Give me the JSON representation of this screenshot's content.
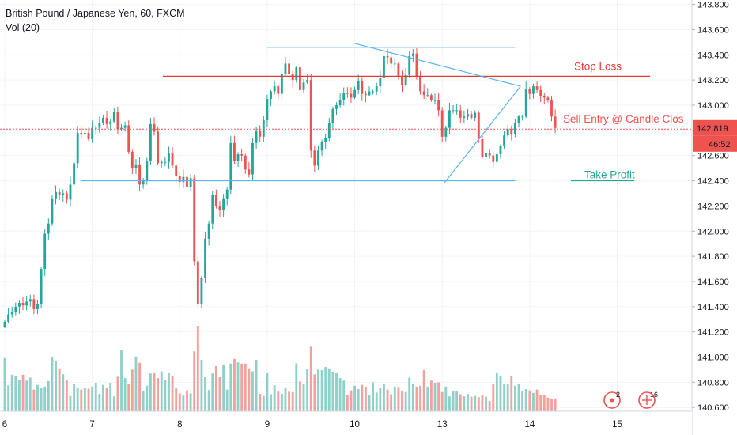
{
  "chart_data": {
    "type": "candlestick",
    "title": "British Pound / Japanese Yen, 60, FXCM",
    "subtitle": "Vol (20)",
    "y_ticks": [
      "143.800",
      "143.600",
      "143.400",
      "143.200",
      "143.000",
      "142.800",
      "142.600",
      "142.400",
      "142.200",
      "142.000",
      "141.800",
      "141.600",
      "141.400",
      "141.200",
      "141.000",
      "140.800",
      "140.600"
    ],
    "ylim": [
      140.57,
      143.835
    ],
    "x_ticks": [
      {
        "label": "6",
        "x": 0
      },
      {
        "label": "7",
        "x": 24
      },
      {
        "label": "8",
        "x": 48
      },
      {
        "label": "9",
        "x": 72
      },
      {
        "label": "10",
        "x": 96
      },
      {
        "label": "13",
        "x": 120
      },
      {
        "label": "14",
        "x": 144
      },
      {
        "label": "15",
        "x": 168
      }
    ],
    "xlim": [
      -1.3,
      188.5
    ],
    "last_price": "142.819",
    "countdown": "46:52",
    "close_values": [
      141.28,
      141.34,
      141.36,
      141.4,
      141.43,
      141.41,
      141.44,
      141.46,
      141.38,
      141.42,
      141.7,
      141.98,
      142.06,
      142.26,
      142.31,
      142.29,
      142.3,
      142.25,
      142.37,
      142.54,
      142.78,
      142.77,
      142.78,
      142.73,
      142.82,
      142.82,
      142.86,
      142.9,
      142.85,
      142.87,
      142.95,
      142.81,
      142.82,
      142.84,
      142.63,
      142.5,
      142.53,
      142.37,
      142.4,
      142.56,
      142.85,
      142.79,
      142.54,
      142.55,
      142.55,
      142.62,
      142.52,
      142.44,
      142.39,
      142.43,
      142.35,
      142.42,
      141.76,
      141.42,
      141.63,
      141.94,
      142.06,
      142.29,
      142.2,
      142.17,
      142.26,
      142.33,
      142.7,
      142.56,
      142.61,
      142.6,
      142.49,
      142.45,
      142.7,
      142.8,
      142.75,
      142.88,
      143.05,
      143.11,
      143.15,
      143.09,
      143.25,
      143.33,
      143.25,
      143.2,
      143.3,
      143.12,
      143.18,
      143.2,
      142.64,
      142.52,
      142.64,
      142.71,
      142.74,
      142.86,
      142.97,
      143.0,
      143.04,
      143.1,
      143.09,
      143.06,
      143.12,
      143.19,
      143.09,
      143.08,
      143.11,
      143.11,
      143.15,
      143.22,
      143.39,
      143.38,
      143.33,
      143.33,
      143.23,
      143.16,
      143.24,
      143.39,
      143.41,
      143.23,
      143.11,
      143.08,
      143.08,
      143.04,
      143.04,
      142.96,
      142.75,
      142.82,
      142.96,
      142.96,
      142.96,
      142.9,
      142.91,
      142.93,
      142.9,
      142.94,
      142.73,
      142.59,
      142.62,
      142.6,
      142.55,
      142.61,
      142.68,
      142.76,
      142.81,
      142.77,
      142.86,
      142.91,
      142.91,
      143.13,
      143.09,
      143.15,
      143.12,
      143.07,
      143.06,
      143.04,
      142.91,
      142.82
    ],
    "volumes": [
      125,
      61,
      86,
      83,
      73,
      86,
      72,
      79,
      51,
      62,
      55,
      58,
      71,
      128,
      118,
      101,
      87,
      73,
      36,
      64,
      56,
      51,
      55,
      53,
      58,
      67,
      41,
      62,
      55,
      67,
      35,
      81,
      144,
      78,
      64,
      98,
      129,
      114,
      48,
      60,
      89,
      91,
      78,
      94,
      73,
      91,
      83,
      56,
      42,
      37,
      49,
      42,
      141,
      201,
      121,
      80,
      50,
      89,
      106,
      80,
      110,
      51,
      112,
      123,
      115,
      112,
      112,
      101,
      94,
      121,
      41,
      36,
      91,
      40,
      61,
      47,
      41,
      54,
      46,
      45,
      113,
      70,
      64,
      99,
      152,
      87,
      98,
      97,
      104,
      101,
      93,
      91,
      78,
      72,
      39,
      49,
      60,
      52,
      62,
      58,
      38,
      68,
      44,
      56,
      64,
      51,
      40,
      58,
      57,
      47,
      45,
      79,
      64,
      58,
      60,
      97,
      58,
      72,
      67,
      68,
      45,
      58,
      35,
      48,
      48,
      40,
      35,
      41,
      34,
      36,
      33,
      39,
      34,
      24,
      64,
      90,
      84,
      63,
      63,
      82,
      60,
      65,
      48,
      52,
      49,
      43,
      51,
      39,
      38,
      32,
      30,
      30
    ],
    "annotations": {
      "stop_loss": {
        "label": "Stop Loss",
        "price": 143.23
      },
      "entry": {
        "label": "Sell Entry @ Candle Clos",
        "price": 142.81
      },
      "take_profit": {
        "label": "Take Profit",
        "price": 142.4
      },
      "resistance_line": {
        "price": 143.46,
        "x_from": 72,
        "x_to": 140
      },
      "support_line": {
        "price": 142.4,
        "x_from": 21,
        "x_to": 140
      },
      "upper_trend": {
        "x1": 96,
        "p1": 143.49,
        "x2": 141.5,
        "p2": 143.15
      },
      "lower_trend": {
        "x1": 120.5,
        "p1": 142.38,
        "x2": 141.5,
        "p2": 143.15
      }
    },
    "colors": {
      "up": "#26a69a",
      "down": "#ef5350",
      "vol_up": "#8fd1c8",
      "vol_down": "#f4a19e",
      "line": "#5ab4f0",
      "stop": "#e53935",
      "take": "#26a69a",
      "entry": "#ef5350"
    },
    "badges": {
      "alerts": "2",
      "ideas": "16"
    }
  }
}
